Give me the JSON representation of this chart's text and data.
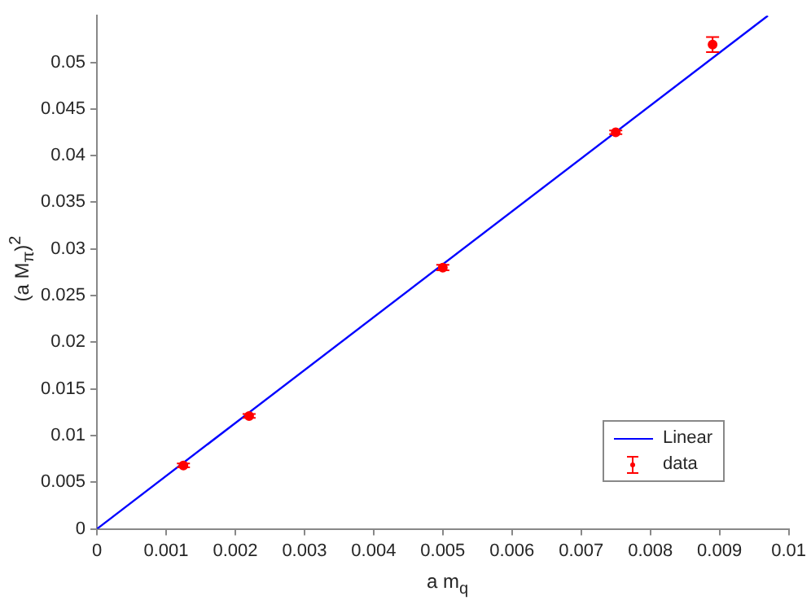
{
  "chart_data": {
    "type": "scatter",
    "xlabel": "a m$_{q}$",
    "ylabel": "(a M$_{π}$)$^{2}$",
    "xlim": [
      0,
      0.01
    ],
    "xticks": [
      0,
      0.001,
      0.002,
      0.003,
      0.004,
      0.005,
      0.006,
      0.007,
      0.008,
      0.009,
      0.01
    ],
    "ylim": [
      0,
      0.055
    ],
    "yticks": [
      0,
      0.005,
      0.01,
      0.015,
      0.02,
      0.025,
      0.03,
      0.035,
      0.04,
      0.045,
      0.05
    ],
    "grid": false,
    "legend": "bottom right",
    "series": [
      {
        "name": "Linear",
        "type": "line",
        "color": "#0000ff",
        "marker": "none",
        "line_style": "solid",
        "x": [
          0,
          0.0097
        ],
        "values": [
          0,
          0.055
        ]
      },
      {
        "name": "data",
        "color": "#ff0000",
        "marker": "circle",
        "x": [
          0.00125,
          0.0022,
          0.005,
          0.0075,
          0.0089
        ],
        "values": [
          0.0068,
          0.0121,
          0.028,
          0.0425,
          0.0519
        ],
        "errors": [
          0.0002,
          0.0002,
          0.0003,
          0.0002,
          0.0008
        ]
      }
    ]
  }
}
